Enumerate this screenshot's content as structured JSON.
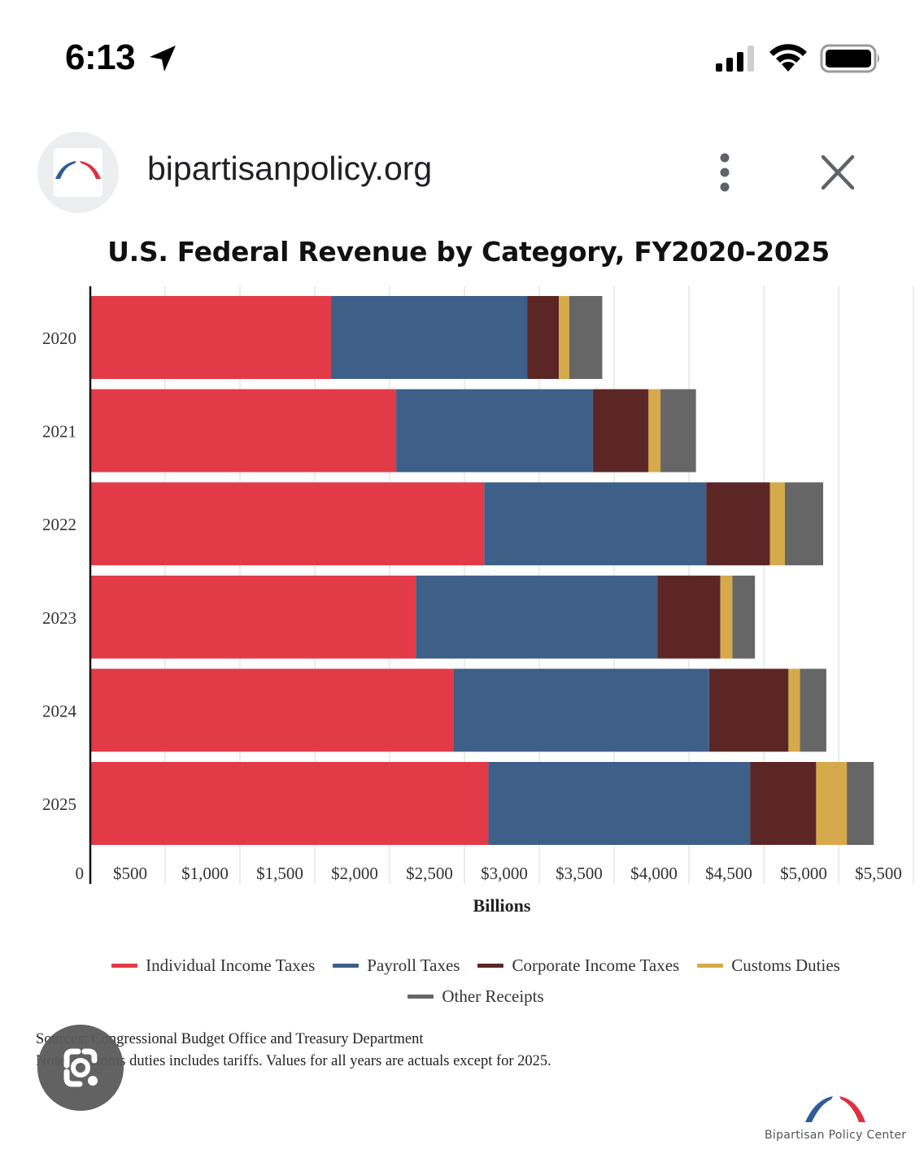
{
  "status_bar": {
    "time": "6:13",
    "icons": [
      "location-arrow-icon",
      "cellular-signal-icon",
      "wifi-icon",
      "battery-icon"
    ]
  },
  "browser": {
    "url": "bipartisanpolicy.org",
    "favicon": "bipartisan-policy-arch-logo",
    "menu_icon": "more-vertical-icon",
    "close_icon": "close-icon"
  },
  "colors": {
    "individual": "#e23a47",
    "payroll": "#3d5f88",
    "corporate": "#5c2626",
    "customs": "#d6aa4a",
    "other": "#666666",
    "axis": "#111111",
    "grid": "#e6e6e6"
  },
  "chart_data": {
    "type": "bar",
    "orientation": "horizontal",
    "stacked": true,
    "title": "U.S. Federal Revenue by Category, FY2020-2025",
    "xlabel": "Billions",
    "ylabel": "",
    "categories": [
      "2020",
      "2021",
      "2022",
      "2023",
      "2024",
      "2025"
    ],
    "series": [
      {
        "name": "Individual Income Taxes",
        "color": "#e23a47",
        "values": [
          1609,
          2044,
          2632,
          2176,
          2426,
          2660
        ]
      },
      {
        "name": "Payroll Taxes",
        "color": "#3d5f88",
        "values": [
          1310,
          1314,
          1484,
          1614,
          1709,
          1750
        ]
      },
      {
        "name": "Corporate Income Taxes",
        "color": "#5c2626",
        "values": [
          212,
          372,
          425,
          420,
          530,
          440
        ]
      },
      {
        "name": "Customs Duties",
        "color": "#d6aa4a",
        "values": [
          69,
          80,
          100,
          80,
          77,
          205
        ]
      },
      {
        "name": "Other Receipts",
        "color": "#666666",
        "values": [
          221,
          237,
          256,
          151,
          176,
          180
        ]
      }
    ],
    "xlim": [
      0,
      5500
    ],
    "x_ticks": [
      0,
      500,
      1000,
      1500,
      2000,
      2500,
      3000,
      3500,
      4000,
      4500,
      5000,
      5500
    ],
    "x_tick_labels": [
      "0",
      "$500",
      "$1,000",
      "$1,500",
      "$2,000",
      "$2,500",
      "$3,000",
      "$3,500",
      "$4,000",
      "$4,500",
      "$5,000",
      "$5,500"
    ],
    "grid": true,
    "legend_position": "bottom-center"
  },
  "legend": [
    {
      "label": "Individual Income Taxes",
      "color": "#e23a47"
    },
    {
      "label": "Payroll Taxes",
      "color": "#3d5f88"
    },
    {
      "label": "Corporate Income Taxes",
      "color": "#5c2626"
    },
    {
      "label": "Customs Duties",
      "color": "#d6aa4a"
    },
    {
      "label": "Other Receipts",
      "color": "#666666"
    }
  ],
  "notes": {
    "sources": "Sources: Congressional Budget Office and Treasury Department",
    "note": "Note: Customs duties includes tariffs. Values for all years are actuals except for 2025."
  },
  "brand": {
    "name": "Bipartisan Policy Center"
  },
  "overlay": {
    "lens_button": "google-lens-icon"
  }
}
